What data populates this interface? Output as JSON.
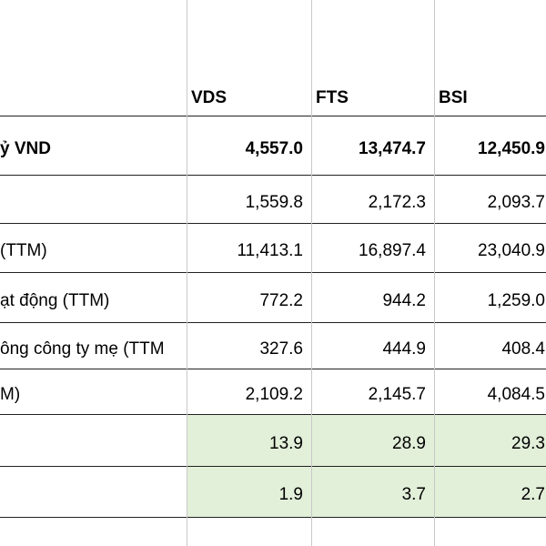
{
  "table": {
    "header": [
      "VDS",
      "FTS",
      "BSI"
    ],
    "rows": [
      {
        "label": "ỷ VND",
        "values": [
          "4,557.0",
          "13,474.7",
          "12,450.9"
        ],
        "bold": true
      },
      {
        "values": [
          "1,559.8",
          "2,172.3",
          "2,093.7"
        ]
      },
      {
        "label": "(TTM)",
        "values": [
          "11,413.1",
          "16,897.4",
          "23,040.9"
        ]
      },
      {
        "label": "ạt động (TTM)",
        "values": [
          "772.2",
          "944.2",
          "1,259.0"
        ]
      },
      {
        "label": "ông công ty mẹ (TTM",
        "values": [
          "327.6",
          "444.9",
          "408.4"
        ]
      },
      {
        "label": "M)",
        "values": [
          "2,109.2",
          "2,145.7",
          "4,084.5"
        ]
      },
      {
        "values": [
          "13.9",
          "28.9",
          "29.3"
        ],
        "highlight": "#e2efd9"
      },
      {
        "values": [
          "1.9",
          "3.7",
          "2.7"
        ],
        "highlight": "#e2efd9"
      }
    ]
  }
}
